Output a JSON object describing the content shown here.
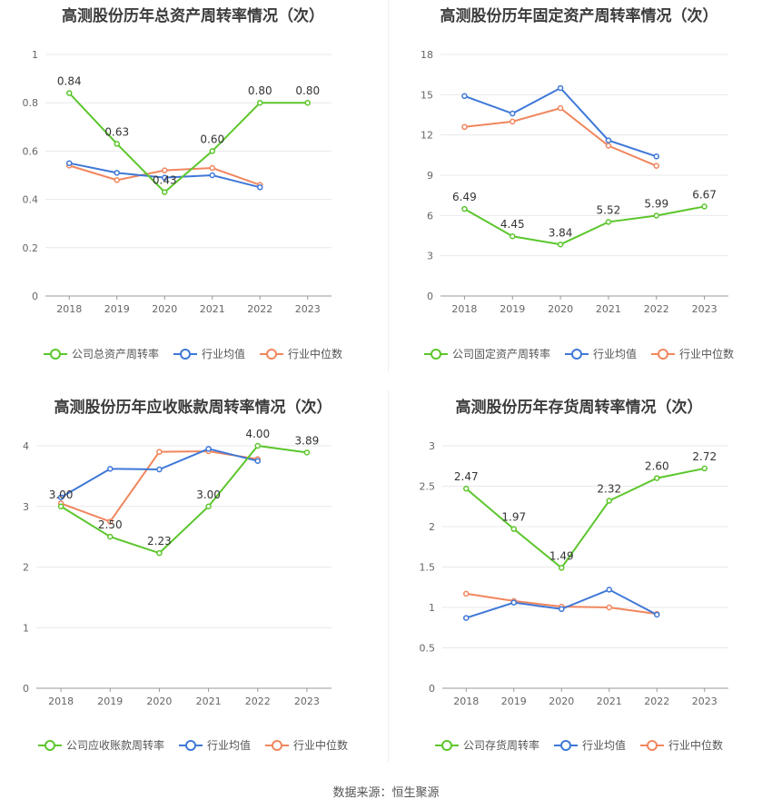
{
  "source": "数据来源：恒生聚源",
  "legend_common": {
    "industry_avg": "行业均值",
    "industry_median": "行业中位数"
  },
  "colors": {
    "company": "#5cc62c",
    "avg": "#3f78d8",
    "median": "#f0865e",
    "grid": "#e8e8ee",
    "axis": "#999999"
  },
  "chart_data": [
    {
      "type": "line",
      "title": "高测股份历年总资产周转率情况（次）",
      "x": [
        "2018",
        "2019",
        "2020",
        "2021",
        "2022",
        "2023"
      ],
      "ylim": [
        0,
        1
      ],
      "yticks": [
        "0",
        "0.2",
        "0.4",
        "0.6",
        "0.8",
        "1"
      ],
      "ytick_values": [
        0,
        0.2,
        0.4,
        0.6,
        0.8,
        1
      ],
      "series": [
        {
          "name": "公司总资产周转率",
          "values": [
            0.84,
            0.63,
            0.43,
            0.6,
            0.8,
            0.8
          ],
          "labels": [
            "0.84",
            "0.63",
            "0.43",
            "0.60",
            "0.80",
            "0.80"
          ]
        },
        {
          "name": "行业均值",
          "values": [
            0.55,
            0.51,
            0.49,
            0.5,
            0.45,
            null
          ]
        },
        {
          "name": "行业中位数",
          "values": [
            0.54,
            0.48,
            0.52,
            0.53,
            0.46,
            null
          ]
        }
      ]
    },
    {
      "type": "line",
      "title": "高测股份历年固定资产周转率情况（次）",
      "x": [
        "2018",
        "2019",
        "2020",
        "2021",
        "2022",
        "2023"
      ],
      "ylim": [
        0,
        18
      ],
      "yticks": [
        "0",
        "3",
        "6",
        "9",
        "12",
        "15",
        "18"
      ],
      "ytick_values": [
        0,
        3,
        6,
        9,
        12,
        15,
        18
      ],
      "series": [
        {
          "name": "公司固定资产周转率",
          "values": [
            6.49,
            4.45,
            3.84,
            5.52,
            5.99,
            6.67
          ],
          "labels": [
            "6.49",
            "4.45",
            "3.84",
            "5.52",
            "5.99",
            "6.67"
          ]
        },
        {
          "name": "行业均值",
          "values": [
            14.9,
            13.6,
            15.5,
            11.6,
            10.4,
            null
          ]
        },
        {
          "name": "行业中位数",
          "values": [
            12.6,
            13.0,
            14.0,
            11.2,
            9.7,
            null
          ]
        }
      ]
    },
    {
      "type": "line",
      "title": "高测股份历年应收账款周转率情况（次）",
      "x": [
        "2018",
        "2019",
        "2020",
        "2021",
        "2022",
        "2023"
      ],
      "ylim": [
        0,
        4
      ],
      "yticks": [
        "0",
        "1",
        "2",
        "3",
        "4"
      ],
      "ytick_values": [
        0,
        1,
        2,
        3,
        4
      ],
      "series": [
        {
          "name": "公司应收账款周转率",
          "values": [
            3.0,
            2.5,
            2.23,
            3.0,
            4.0,
            3.89
          ],
          "labels": [
            "3.00",
            "2.50",
            "2.23",
            "3.00",
            "4.00",
            "3.89"
          ]
        },
        {
          "name": "行业均值",
          "values": [
            3.15,
            3.62,
            3.61,
            3.95,
            3.75,
            null
          ]
        },
        {
          "name": "行业中位数",
          "values": [
            3.05,
            2.75,
            3.9,
            3.91,
            3.78,
            null
          ]
        }
      ]
    },
    {
      "type": "line",
      "title": "高测股份历年存货周转率情况（次）",
      "x": [
        "2018",
        "2019",
        "2020",
        "2021",
        "2022",
        "2023"
      ],
      "ylim": [
        0,
        3
      ],
      "yticks": [
        "0",
        "0.5",
        "1",
        "1.5",
        "2",
        "2.5",
        "3"
      ],
      "ytick_values": [
        0,
        0.5,
        1,
        1.5,
        2,
        2.5,
        3
      ],
      "series": [
        {
          "name": "公司存货周转率",
          "values": [
            2.47,
            1.97,
            1.49,
            2.32,
            2.6,
            2.72
          ],
          "labels": [
            "2.47",
            "1.97",
            "1.49",
            "2.32",
            "2.60",
            "2.72"
          ]
        },
        {
          "name": "行业均值",
          "values": [
            0.87,
            1.06,
            0.98,
            1.22,
            0.91,
            null
          ]
        },
        {
          "name": "行业中位数",
          "values": [
            1.17,
            1.08,
            1.01,
            1.0,
            0.92,
            null
          ]
        }
      ]
    }
  ]
}
